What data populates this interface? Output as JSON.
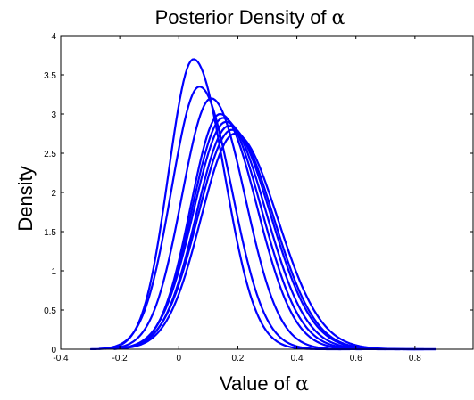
{
  "chart_data": {
    "type": "line",
    "title": "Posterior Density of",
    "title_symbol": "α",
    "xlabel": "Value of",
    "xlabel_symbol": "α",
    "ylabel": "Density",
    "xlim": [
      -0.4,
      1.0
    ],
    "ylim": [
      0,
      4
    ],
    "xticks": [
      -0.4,
      -0.2,
      0,
      0.2,
      0.4,
      0.6,
      0.8
    ],
    "xtick_labels": [
      "-0.4",
      "-0.2",
      "0",
      "0.2",
      "0.4",
      "0.6",
      "0.8"
    ],
    "yticks": [
      0,
      0.5,
      1,
      1.5,
      2,
      2.5,
      3,
      3.5,
      4
    ],
    "ytick_labels": [
      "0",
      "0.5",
      "1",
      "1.5",
      "2",
      "2.5",
      "3",
      "3.5",
      "4"
    ],
    "grid": false,
    "line_color": "#0000ff",
    "series": [
      {
        "mean": 0.05,
        "sd_left": 0.085,
        "sd_right": 0.105,
        "peak": 3.7,
        "x_range": [
          -0.3,
          0.55
        ]
      },
      {
        "mean": 0.07,
        "sd_left": 0.095,
        "sd_right": 0.11,
        "peak": 3.35,
        "x_range": [
          -0.27,
          0.58
        ]
      },
      {
        "mean": 0.11,
        "sd_left": 0.1,
        "sd_right": 0.115,
        "peak": 3.2,
        "x_range": [
          -0.25,
          0.62
        ]
      },
      {
        "mean": 0.14,
        "sd_left": 0.1,
        "sd_right": 0.125,
        "peak": 3.0,
        "x_range": [
          -0.22,
          0.7
        ]
      },
      {
        "mean": 0.15,
        "sd_left": 0.105,
        "sd_right": 0.13,
        "peak": 2.95,
        "x_range": [
          -0.22,
          0.75
        ]
      },
      {
        "mean": 0.16,
        "sd_left": 0.11,
        "sd_right": 0.135,
        "peak": 2.9,
        "x_range": [
          -0.22,
          0.8
        ]
      },
      {
        "mean": 0.17,
        "sd_left": 0.11,
        "sd_right": 0.14,
        "peak": 2.85,
        "x_range": [
          -0.22,
          0.83
        ]
      },
      {
        "mean": 0.18,
        "sd_left": 0.115,
        "sd_right": 0.14,
        "peak": 2.8,
        "x_range": [
          -0.22,
          0.87
        ]
      },
      {
        "mean": 0.19,
        "sd_left": 0.115,
        "sd_right": 0.145,
        "peak": 2.75,
        "x_range": [
          -0.22,
          0.87
        ]
      }
    ]
  }
}
